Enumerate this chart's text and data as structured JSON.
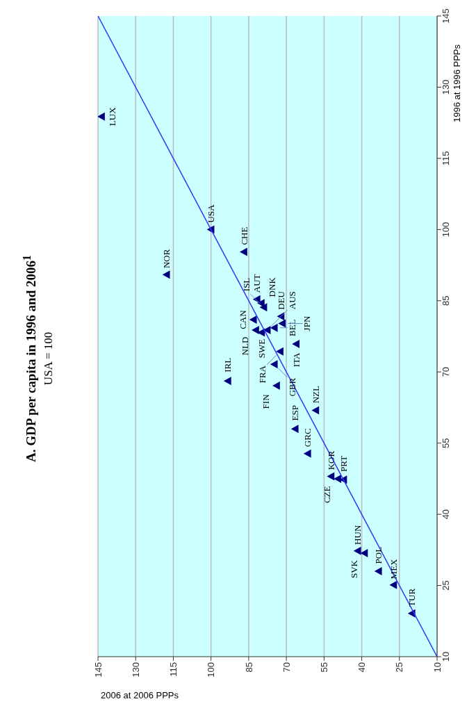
{
  "chart_data": {
    "type": "scatter",
    "title": "A. GDP per capita in 1996 and 2006$^{1}$",
    "subtitle": "USA = 100",
    "xlabel": "2006 at 2006 PPPs",
    "ylabel": "1996 at 1996 PPPs",
    "xlim": [
      145,
      10
    ],
    "xticks": [
      145,
      130,
      115,
      100,
      85,
      70,
      55,
      40,
      25,
      10
    ],
    "ylim": [
      10,
      145
    ],
    "yticks": [
      10,
      25,
      40,
      55,
      70,
      85,
      100,
      115,
      130,
      145
    ],
    "grid": "x",
    "series": [
      {
        "color": "#000080",
        "marker": "triangle",
        "x": [
          143.6,
          100,
          117.7,
          86.9,
          80.0,
          81.7,
          79.0,
          83.1,
          82.2,
          77.6,
          79.9,
          74.8,
          72.1,
          71.6,
          66.1,
          72.5,
          74.8,
          73.9,
          93.3,
          58.3,
          66.5,
          61.5,
          52.2,
          49.5,
          47.2,
          41.6,
          38.9,
          33.3,
          27.3,
          20.0
        ],
        "values": [
          123.8,
          100,
          90.5,
          95.3,
          84.5,
          85.3,
          83.6,
          81.0,
          78.8,
          78.8,
          78.3,
          79.3,
          81.7,
          80.2,
          75.9,
          74.3,
          71.6,
          67.1,
          68.1,
          61.9,
          58.0,
          52.8,
          48.0,
          47.5,
          47.3,
          32.3,
          31.8,
          28.0,
          25.1,
          19.1
        ]
      },
      {
        "type": "line",
        "color": "#3333ff",
        "marker": "none",
        "x": [
          10,
          145
        ],
        "values": [
          10,
          145
        ]
      }
    ],
    "annotations": [
      {
        "text": "LUX",
        "x": 143.6,
        "y": 123.8
      },
      {
        "text": "USA",
        "x": 100,
        "y": 100
      },
      {
        "text": "NOR",
        "x": 117.7,
        "y": 90.5
      },
      {
        "text": "CHE",
        "x": 86.9,
        "y": 95.3
      },
      {
        "text": "DNK",
        "x": 80.0,
        "y": 84.5
      },
      {
        "text": "AUT",
        "x": 81.7,
        "y": 85.3
      },
      {
        "text": "ISL",
        "x": 79.0,
        "y": 83.6
      },
      {
        "text": "CAN",
        "x": 83.1,
        "y": 81.0
      },
      {
        "text": "NLD",
        "x": 82.2,
        "y": 78.8
      },
      {
        "text": "AUS",
        "x": 77.6,
        "y": 78.8
      },
      {
        "text": "SWE",
        "x": 79.9,
        "y": 78.3
      },
      {
        "text": "BEL",
        "x": 74.8,
        "y": 79.3
      },
      {
        "text": "DEU",
        "x": 72.1,
        "y": 81.7
      },
      {
        "text": "JPN",
        "x": 71.6,
        "y": 80.2
      },
      {
        "text": "ITA",
        "x": 66.1,
        "y": 75.9
      },
      {
        "text": "FRA",
        "x": 72.5,
        "y": 74.3
      },
      {
        "text": "GBR",
        "x": 74.8,
        "y": 71.6
      },
      {
        "text": "FIN",
        "x": 73.9,
        "y": 67.1
      },
      {
        "text": "IRL",
        "x": 93.3,
        "y": 68.1
      },
      {
        "text": "NZL",
        "x": 58.3,
        "y": 61.9
      },
      {
        "text": "ESP",
        "x": 66.5,
        "y": 58.0
      },
      {
        "text": "GRC",
        "x": 61.5,
        "y": 52.8
      },
      {
        "text": "KOR",
        "x": 52.2,
        "y": 48.0
      },
      {
        "text": "CZE",
        "x": 49.5,
        "y": 47.5
      },
      {
        "text": "PRT",
        "x": 47.2,
        "y": 47.3
      },
      {
        "text": "HUN",
        "x": 41.6,
        "y": 32.3
      },
      {
        "text": "SVK",
        "x": 38.9,
        "y": 31.8
      },
      {
        "text": "POL",
        "x": 33.3,
        "y": 28.0
      },
      {
        "text": "MEX",
        "x": 27.3,
        "y": 25.1
      },
      {
        "text": "TUR",
        "x": 20.0,
        "y": 19.1
      }
    ]
  }
}
